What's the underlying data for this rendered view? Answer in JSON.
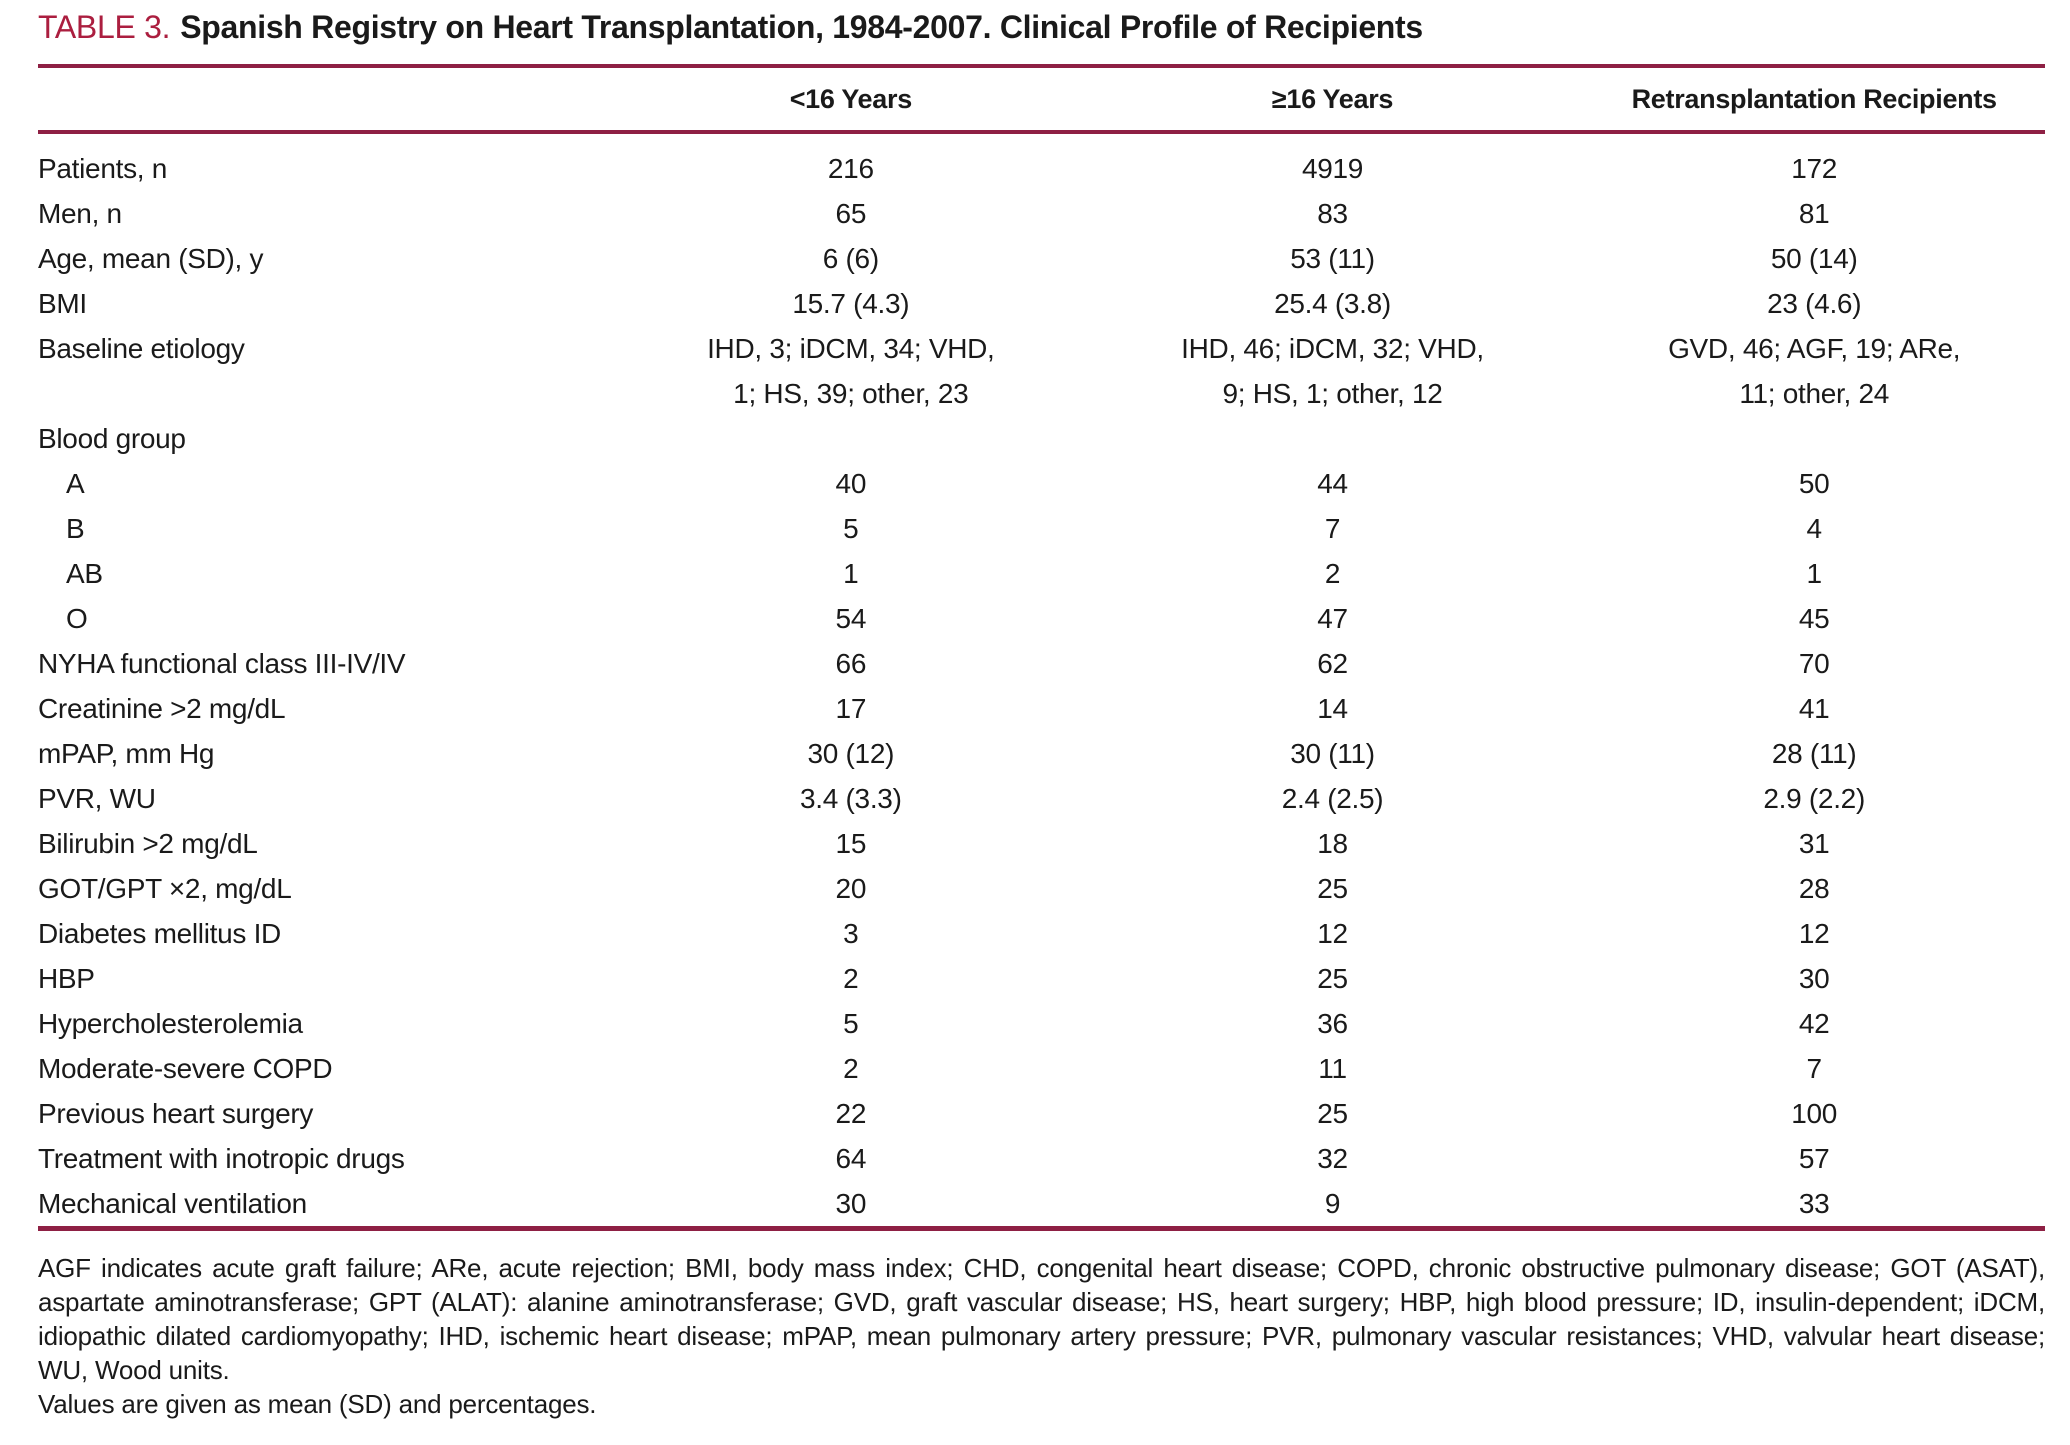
{
  "title": {
    "label": "TABLE 3.",
    "text": "Spanish Registry on Heart Transplantation, 1984-2007. Clinical Profile of Recipients"
  },
  "accent_colors": {
    "rule_maroon": "#8E2044",
    "title_crimson": "#AB1E3F"
  },
  "table": {
    "columns": [
      "",
      "<16 Years",
      "≥16 Years",
      "Retransplantation Recipients"
    ],
    "rows": [
      {
        "label": "Patients, n",
        "indent": false,
        "values": [
          "216",
          "4919",
          "172"
        ]
      },
      {
        "label": "Men, n",
        "indent": false,
        "values": [
          "65",
          "83",
          "81"
        ]
      },
      {
        "label": "Age, mean (SD), y",
        "indent": false,
        "values": [
          "6 (6)",
          "53 (11)",
          "50 (14)"
        ]
      },
      {
        "label": "BMI",
        "indent": false,
        "values": [
          "15.7 (4.3)",
          "25.4 (3.8)",
          "23 (4.6)"
        ]
      },
      {
        "label": "Baseline etiology",
        "indent": false,
        "values": [
          [
            "IHD, 3; iDCM, 34; VHD,",
            "1; HS, 39; other, 23"
          ],
          [
            "IHD, 46; iDCM, 32; VHD,",
            "9; HS, 1; other, 12"
          ],
          [
            "GVD, 46; AGF, 19; ARe,",
            "11; other, 24"
          ]
        ]
      },
      {
        "label": "Blood group",
        "indent": false,
        "values": [
          "",
          "",
          ""
        ]
      },
      {
        "label": "A",
        "indent": true,
        "values": [
          "40",
          "44",
          "50"
        ]
      },
      {
        "label": "B",
        "indent": true,
        "values": [
          "5",
          "7",
          "4"
        ]
      },
      {
        "label": "AB",
        "indent": true,
        "values": [
          "1",
          "2",
          "1"
        ]
      },
      {
        "label": "O",
        "indent": true,
        "values": [
          "54",
          "47",
          "45"
        ]
      },
      {
        "label": "NYHA functional class III-IV/IV",
        "indent": false,
        "values": [
          "66",
          "62",
          "70"
        ]
      },
      {
        "label": "Creatinine >2 mg/dL",
        "indent": false,
        "values": [
          "17",
          "14",
          "41"
        ]
      },
      {
        "label": "mPAP, mm Hg",
        "indent": false,
        "values": [
          "30 (12)",
          "30 (11)",
          "28 (11)"
        ]
      },
      {
        "label": "PVR, WU",
        "indent": false,
        "values": [
          "3.4 (3.3)",
          "2.4 (2.5)",
          "2.9 (2.2)"
        ]
      },
      {
        "label": "Bilirubin >2 mg/dL",
        "indent": false,
        "values": [
          "15",
          "18",
          "31"
        ]
      },
      {
        "label": "GOT/GPT ×2, mg/dL",
        "indent": false,
        "values": [
          "20",
          "25",
          "28"
        ]
      },
      {
        "label": "Diabetes mellitus ID",
        "indent": false,
        "values": [
          "3",
          "12",
          "12"
        ]
      },
      {
        "label": "HBP",
        "indent": false,
        "values": [
          "2",
          "25",
          "30"
        ]
      },
      {
        "label": "Hypercholesterolemia",
        "indent": false,
        "values": [
          "5",
          "36",
          "42"
        ]
      },
      {
        "label": "Moderate-severe COPD",
        "indent": false,
        "values": [
          "2",
          "11",
          "7"
        ]
      },
      {
        "label": "Previous heart surgery",
        "indent": false,
        "values": [
          "22",
          "25",
          "100"
        ]
      },
      {
        "label": "Treatment with inotropic drugs",
        "indent": false,
        "values": [
          "64",
          "32",
          "57"
        ]
      },
      {
        "label": "Mechanical ventilation",
        "indent": false,
        "values": [
          "30",
          "9",
          "33"
        ]
      }
    ]
  },
  "footnotes": [
    "AGF indicates acute graft failure; ARe, acute rejection; BMI, body mass index; CHD, congenital heart disease; COPD, chronic obstructive pulmonary disease; GOT (ASAT), aspartate aminotransferase; GPT (ALAT): alanine aminotransferase; GVD, graft vascular disease; HS, heart surgery; HBP, high blood pressure; ID, insulin-dependent; iDCM, idiopathic dilated cardiomyopathy; IHD, ischemic heart disease; mPAP, mean pulmonary artery pressure; PVR, pulmonary vascular resistances; VHD, valvular heart disease; WU, Wood units.",
    "Values are given as mean (SD) and percentages."
  ]
}
